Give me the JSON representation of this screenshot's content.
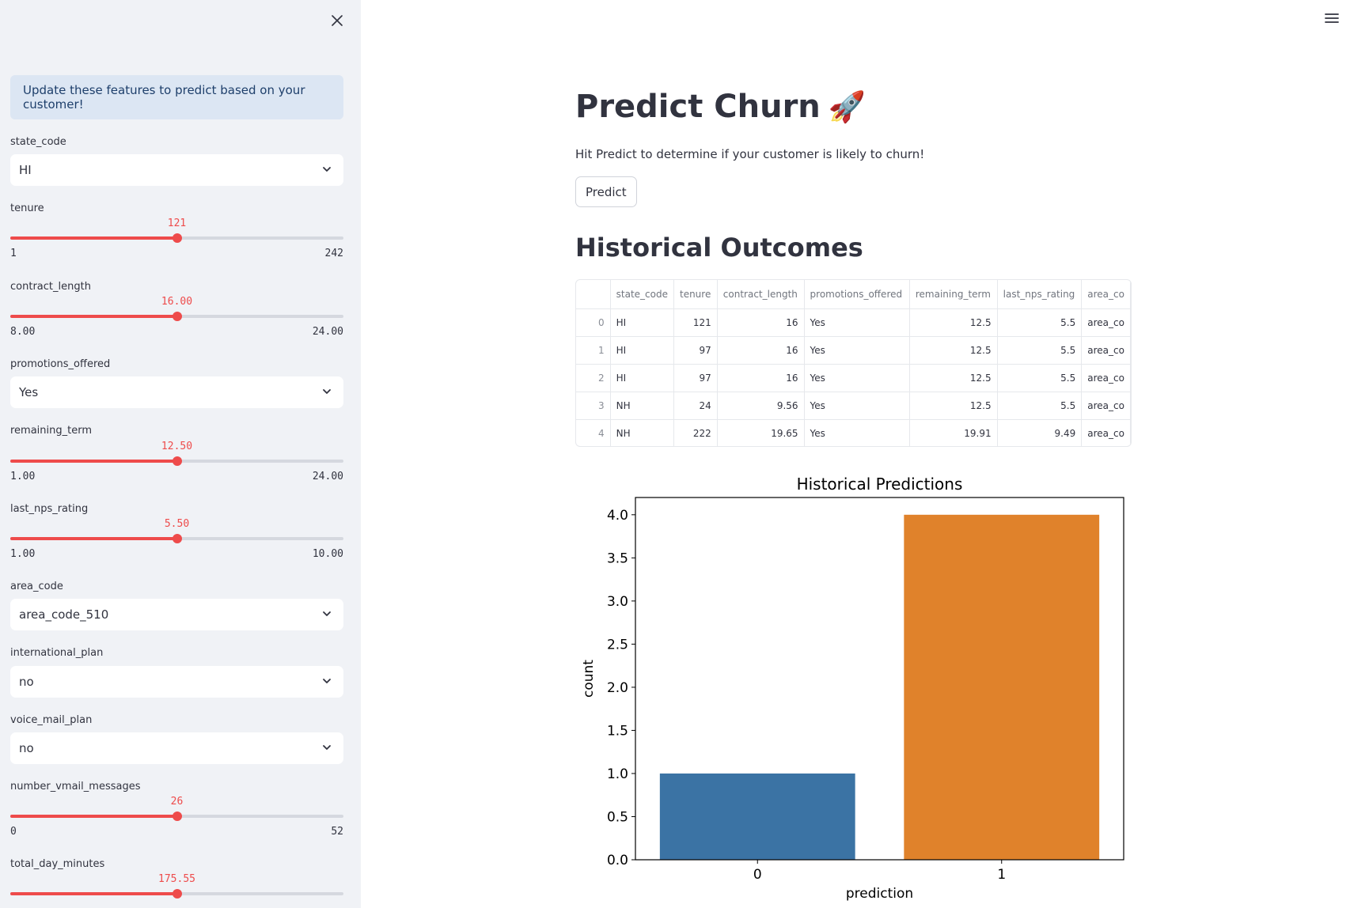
{
  "sidebar": {
    "info": "Update these features to predict based on your customer!",
    "selects": [
      {
        "label": "state_code",
        "value": "HI"
      },
      {
        "label": "promotions_offered",
        "value": "Yes"
      },
      {
        "label": "area_code",
        "value": "area_code_510"
      },
      {
        "label": "international_plan",
        "value": "no"
      },
      {
        "label": "voice_mail_plan",
        "value": "no"
      }
    ],
    "sliders": [
      {
        "label": "tenure",
        "value": "121",
        "min": "1",
        "max": "242",
        "fraction": 0.5
      },
      {
        "label": "contract_length",
        "value": "16.00",
        "min": "8.00",
        "max": "24.00",
        "fraction": 0.5
      },
      {
        "label": "remaining_term",
        "value": "12.50",
        "min": "1.00",
        "max": "24.00",
        "fraction": 0.5
      },
      {
        "label": "last_nps_rating",
        "value": "5.50",
        "min": "1.00",
        "max": "10.00",
        "fraction": 0.5
      },
      {
        "label": "number_vmail_messages",
        "value": "26",
        "min": "0",
        "max": "52",
        "fraction": 0.5
      },
      {
        "label": "total_day_minutes",
        "value": "175.55",
        "min": "",
        "max": "",
        "fraction": 0.5
      }
    ]
  },
  "main": {
    "title": "Predict Churn",
    "title_emoji": "🚀",
    "subtitle": "Hit Predict to determine if your customer is likely to churn!",
    "predict_label": "Predict",
    "historical_heading": "Historical Outcomes"
  },
  "table": {
    "columns": [
      "",
      "state_code",
      "tenure",
      "contract_length",
      "promotions_offered",
      "remaining_term",
      "last_nps_rating",
      "area_co"
    ],
    "rows": [
      [
        "0",
        "HI",
        "121",
        "16",
        "Yes",
        "12.5",
        "5.5",
        "area_co"
      ],
      [
        "1",
        "HI",
        "97",
        "16",
        "Yes",
        "12.5",
        "5.5",
        "area_co"
      ],
      [
        "2",
        "HI",
        "97",
        "16",
        "Yes",
        "12.5",
        "5.5",
        "area_co"
      ],
      [
        "3",
        "NH",
        "24",
        "9.56",
        "Yes",
        "12.5",
        "5.5",
        "area_co"
      ],
      [
        "4",
        "NH",
        "222",
        "19.65",
        "Yes",
        "19.91",
        "9.49",
        "area_co"
      ]
    ]
  },
  "chart_data": {
    "type": "bar",
    "title": "Historical Predictions",
    "xlabel": "prediction",
    "ylabel": "count",
    "categories": [
      "0",
      "1"
    ],
    "values": [
      1,
      4
    ],
    "colors": [
      "#3b73a4",
      "#e0822b"
    ],
    "ylim": [
      0,
      4.2
    ],
    "yticks": [
      "0.0",
      "0.5",
      "1.0",
      "1.5",
      "2.0",
      "2.5",
      "3.0",
      "3.5",
      "4.0"
    ],
    "grid": false
  }
}
